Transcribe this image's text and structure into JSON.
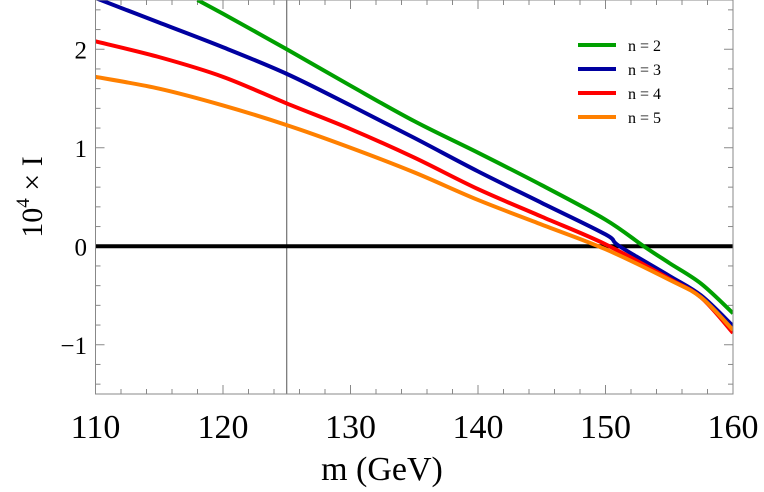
{
  "chart_data": {
    "type": "line",
    "title": "",
    "xlabel": "m (GeV)",
    "ylabel_parts": {
      "base": "10",
      "exp": "4",
      "rest": " × I"
    },
    "xlim": [
      110,
      160
    ],
    "ylim": [
      -1.5,
      2.5
    ],
    "x_ticks": [
      110,
      120,
      130,
      140,
      150,
      160
    ],
    "x_tick_labels": [
      "110",
      "120",
      "130",
      "140",
      "150",
      "160"
    ],
    "y_ticks": [
      -1,
      0,
      1,
      2
    ],
    "y_tick_labels": [
      "−1",
      "0",
      "1",
      "2"
    ],
    "x_minor_step": 2,
    "y_minor_step": 0.2,
    "grid": false,
    "reference_lines": {
      "horizontal_y": 0,
      "vertical_x": 125
    },
    "legend_position": "top-right",
    "series": [
      {
        "name": "n = 2",
        "color": "#00a000",
        "points": [
          [
            118,
            2.5
          ],
          [
            120,
            2.36
          ],
          [
            125,
            2.0
          ],
          [
            130,
            1.63
          ],
          [
            135,
            1.27
          ],
          [
            140,
            0.95
          ],
          [
            145,
            0.62
          ],
          [
            150,
            0.27
          ],
          [
            153,
            0.0
          ],
          [
            155,
            -0.17
          ],
          [
            157.5,
            -0.38
          ],
          [
            160,
            -0.68
          ]
        ]
      },
      {
        "name": "n = 3",
        "color": "#0000a0",
        "points": [
          [
            110,
            2.52
          ],
          [
            115,
            2.27
          ],
          [
            120,
            2.02
          ],
          [
            125,
            1.75
          ],
          [
            130,
            1.43
          ],
          [
            135,
            1.1
          ],
          [
            140,
            0.76
          ],
          [
            145,
            0.44
          ],
          [
            150,
            0.12
          ],
          [
            151.1,
            0.0
          ],
          [
            155,
            -0.3
          ],
          [
            157.5,
            -0.5
          ],
          [
            160,
            -0.81
          ]
        ]
      },
      {
        "name": "n = 4",
        "color": "#ff0000",
        "points": [
          [
            110,
            2.08
          ],
          [
            115,
            1.92
          ],
          [
            120,
            1.72
          ],
          [
            125,
            1.45
          ],
          [
            130,
            1.19
          ],
          [
            135,
            0.9
          ],
          [
            140,
            0.58
          ],
          [
            145,
            0.3
          ],
          [
            150,
            0.02
          ],
          [
            155,
            -0.33
          ],
          [
            157.5,
            -0.52
          ],
          [
            160,
            -0.88
          ]
        ]
      },
      {
        "name": "n = 5",
        "color": "#ff8000",
        "points": [
          [
            110,
            1.72
          ],
          [
            115,
            1.6
          ],
          [
            120,
            1.43
          ],
          [
            125,
            1.23
          ],
          [
            130,
            1.0
          ],
          [
            135,
            0.75
          ],
          [
            140,
            0.47
          ],
          [
            145,
            0.22
          ],
          [
            150,
            -0.03
          ],
          [
            155,
            -0.34
          ],
          [
            157.5,
            -0.52
          ],
          [
            160,
            -0.85
          ]
        ]
      }
    ]
  }
}
